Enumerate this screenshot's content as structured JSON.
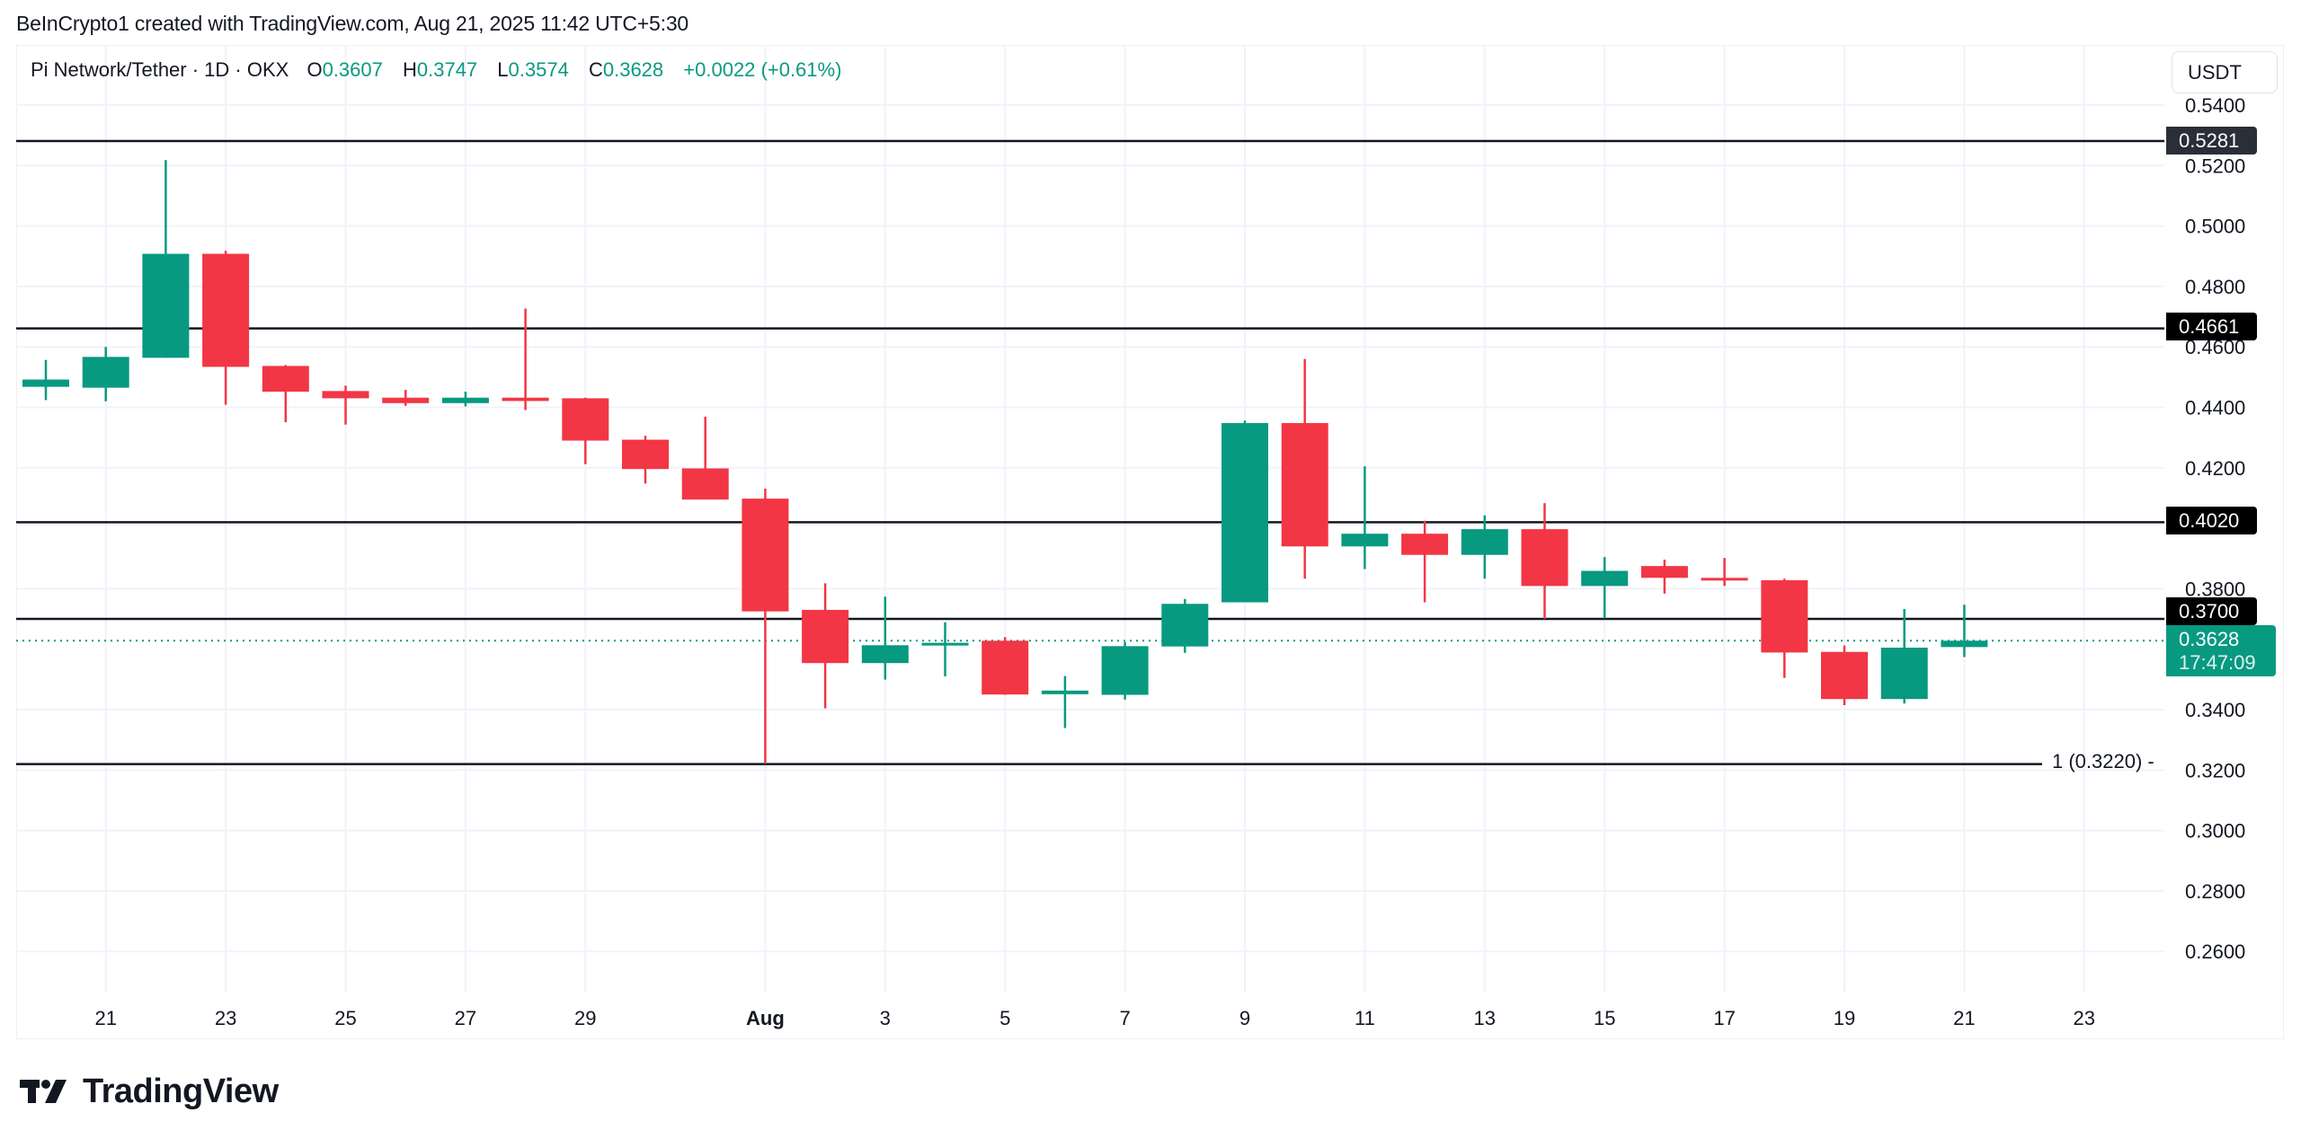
{
  "caption": "BeInCrypto1 created with TradingView.com, Aug 21, 2025 11:42 UTC+5:30",
  "legend": {
    "title": "Pi Network/Tether · 1D · OKX",
    "o_label": "O",
    "o": "0.3607",
    "h_label": "H",
    "h": "0.3747",
    "l_label": "L",
    "l": "0.3574",
    "c_label": "C",
    "c": "0.3628",
    "change": "+0.0022 (+0.61%)"
  },
  "unit_button": "USDT",
  "price_labels": {
    "level_1": "0.5281",
    "level_2": "0.4661",
    "level_3": "0.4020",
    "level_4": "0.3700",
    "current_price": "0.3628",
    "countdown": "17:47:09",
    "fib_label": "1 (0.3220) -"
  },
  "logo": {
    "text": "TradingView"
  },
  "colors": {
    "up": "#089981",
    "down": "#f23645",
    "grid": "#f0f3fa",
    "level_line": "#131722",
    "level_box_dark": "#2a2e39",
    "level_box": "#000000",
    "current": "#089981"
  },
  "chart_data": {
    "type": "candlestick",
    "title": "Pi Network/Tether · 1D · OKX",
    "xlabel": "",
    "ylabel": "USDT",
    "ylim": [
      0.25,
      0.545
    ],
    "y_ticks": [
      "0.5400",
      "0.5200",
      "0.5000",
      "0.4800",
      "0.4600",
      "0.4400",
      "0.4200",
      "0.3800",
      "0.3400",
      "0.3200",
      "0.3000",
      "0.2800",
      "0.2600"
    ],
    "x_ticks": [
      "21",
      "23",
      "25",
      "27",
      "29",
      "Aug",
      "3",
      "5",
      "7",
      "9",
      "11",
      "13",
      "15",
      "17",
      "19",
      "21",
      "23"
    ],
    "horizontal_levels": [
      0.5281,
      0.4661,
      0.402,
      0.37,
      0.322
    ],
    "current_price": 0.3628,
    "candles": [
      {
        "date": "Jul 20",
        "o": 0.4468,
        "h": 0.4557,
        "l": 0.4424,
        "c": 0.4492
      },
      {
        "date": "Jul 21",
        "o": 0.4465,
        "h": 0.46,
        "l": 0.442,
        "c": 0.4567
      },
      {
        "date": "Jul 22",
        "o": 0.4564,
        "h": 0.5218,
        "l": 0.4564,
        "c": 0.4908
      },
      {
        "date": "Jul 23",
        "o": 0.4908,
        "h": 0.4918,
        "l": 0.4409,
        "c": 0.4534
      },
      {
        "date": "Jul 24",
        "o": 0.4537,
        "h": 0.454,
        "l": 0.4351,
        "c": 0.4452
      },
      {
        "date": "Jul 25",
        "o": 0.4454,
        "h": 0.4472,
        "l": 0.4343,
        "c": 0.443
      },
      {
        "date": "Jul 26",
        "o": 0.4432,
        "h": 0.4458,
        "l": 0.4405,
        "c": 0.4414
      },
      {
        "date": "Jul 27",
        "o": 0.4414,
        "h": 0.4452,
        "l": 0.4403,
        "c": 0.4432
      },
      {
        "date": "Jul 28",
        "o": 0.4432,
        "h": 0.4727,
        "l": 0.4391,
        "c": 0.4421
      },
      {
        "date": "Jul 29",
        "o": 0.443,
        "h": 0.4432,
        "l": 0.4212,
        "c": 0.429
      },
      {
        "date": "Jul 30",
        "o": 0.4293,
        "h": 0.4306,
        "l": 0.4148,
        "c": 0.4196
      },
      {
        "date": "Jul 31",
        "o": 0.4198,
        "h": 0.4369,
        "l": 0.4115,
        "c": 0.4095
      },
      {
        "date": "Aug 1",
        "o": 0.4098,
        "h": 0.4131,
        "l": 0.3221,
        "c": 0.3725
      },
      {
        "date": "Aug 2",
        "o": 0.373,
        "h": 0.3818,
        "l": 0.3404,
        "c": 0.3554
      },
      {
        "date": "Aug 3",
        "o": 0.3554,
        "h": 0.3774,
        "l": 0.3499,
        "c": 0.3613
      },
      {
        "date": "Aug 4",
        "o": 0.3613,
        "h": 0.3689,
        "l": 0.351,
        "c": 0.3621
      },
      {
        "date": "Aug 5",
        "o": 0.3628,
        "h": 0.364,
        "l": 0.3449,
        "c": 0.345
      },
      {
        "date": "Aug 6",
        "o": 0.3451,
        "h": 0.3511,
        "l": 0.3339,
        "c": 0.3463
      },
      {
        "date": "Aug 7",
        "o": 0.3449,
        "h": 0.3624,
        "l": 0.3433,
        "c": 0.361
      },
      {
        "date": "Aug 8",
        "o": 0.3609,
        "h": 0.3766,
        "l": 0.3588,
        "c": 0.375
      },
      {
        "date": "Aug 9",
        "o": 0.3755,
        "h": 0.4356,
        "l": 0.3755,
        "c": 0.4348
      },
      {
        "date": "Aug 10",
        "o": 0.4348,
        "h": 0.456,
        "l": 0.3833,
        "c": 0.394
      },
      {
        "date": "Aug 11",
        "o": 0.394,
        "h": 0.4205,
        "l": 0.3865,
        "c": 0.3982
      },
      {
        "date": "Aug 12",
        "o": 0.3982,
        "h": 0.4025,
        "l": 0.3755,
        "c": 0.3912
      },
      {
        "date": "Aug 13",
        "o": 0.3912,
        "h": 0.4043,
        "l": 0.3833,
        "c": 0.3997
      },
      {
        "date": "Aug 14",
        "o": 0.3997,
        "h": 0.4083,
        "l": 0.37,
        "c": 0.3809
      },
      {
        "date": "Aug 15",
        "o": 0.3809,
        "h": 0.3905,
        "l": 0.3702,
        "c": 0.3859
      },
      {
        "date": "Aug 16",
        "o": 0.3875,
        "h": 0.3896,
        "l": 0.3784,
        "c": 0.3836
      },
      {
        "date": "Aug 17",
        "o": 0.3836,
        "h": 0.3902,
        "l": 0.3809,
        "c": 0.3827
      },
      {
        "date": "Aug 18",
        "o": 0.3828,
        "h": 0.3833,
        "l": 0.3505,
        "c": 0.3589
      },
      {
        "date": "Aug 19",
        "o": 0.3591,
        "h": 0.3612,
        "l": 0.3415,
        "c": 0.3435
      },
      {
        "date": "Aug 20",
        "o": 0.3435,
        "h": 0.3733,
        "l": 0.342,
        "c": 0.3605
      },
      {
        "date": "Aug 21",
        "o": 0.3607,
        "h": 0.3747,
        "l": 0.3574,
        "c": 0.3628
      }
    ]
  }
}
